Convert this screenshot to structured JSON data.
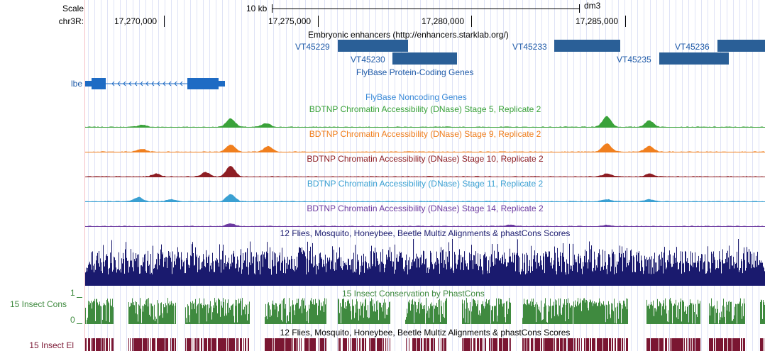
{
  "ruler": {
    "scale_label": "Scale",
    "chrom_label": "chr3R:",
    "scale_bar_text": "10 kb",
    "assembly": "dm3",
    "positions": [
      "17,270,000",
      "17,275,000",
      "17,280,000",
      "17,285,000"
    ]
  },
  "enhancers": {
    "title": "Embryonic enhancers (http://enhancers.starklab.org/)",
    "features": [
      "VT45229",
      "VT45230",
      "VT45233",
      "VT45235",
      "VT45236"
    ]
  },
  "genes": {
    "title": "FlyBase Protein-Coding Genes",
    "gene_name": "lbe",
    "noncoding_title": "FlyBase Noncoding Genes"
  },
  "dnase_tracks": [
    {
      "title": "BDTNP Chromatin Accessibility (DNase) Stage 5, Replicate 2",
      "color": "#3aa23a"
    },
    {
      "title": "BDTNP Chromatin Accessibility (DNase) Stage 9, Replicate 2",
      "color": "#f07f1e"
    },
    {
      "title": "BDTNP Chromatin Accessibility (DNase) Stage 10, Replicate 2",
      "color": "#8e1e24"
    },
    {
      "title": "BDTNP Chromatin Accessibility (DNase) Stage 11, Replicate 2",
      "color": "#3aa0d2"
    },
    {
      "title": "BDTNP Chromatin Accessibility (DNase) Stage 14, Replicate 2",
      "color": "#6c3aa0"
    }
  ],
  "multiz": {
    "title": "12 Flies, Mosquito, Honeybee, Beetle Multiz Alignments & phastCons Scores",
    "color": "#1a1a6e"
  },
  "phastcons": {
    "side_label": "15 Insect Cons",
    "title": "15 Insect Conservation by PhastCons",
    "axis_max": "1",
    "axis_min": "0",
    "color": "#3f8a3f"
  },
  "elements": {
    "side_label": "15 Insect El",
    "title": "12 Flies, Mosquito, Honeybee, Beetle Multiz Alignments & phastCons Scores",
    "color": "#7a1632"
  }
}
